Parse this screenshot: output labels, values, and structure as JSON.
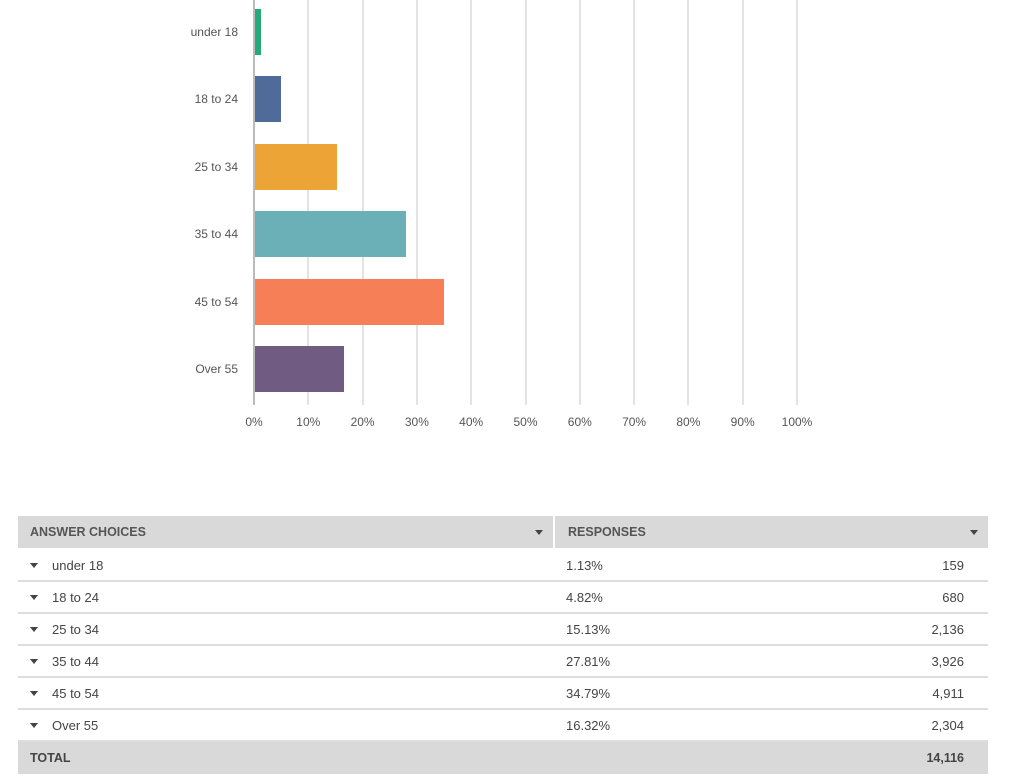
{
  "chart_data": {
    "type": "bar",
    "orientation": "horizontal",
    "categories": [
      "under 18",
      "18 to 24",
      "25 to 34",
      "35 to 44",
      "45 to 54",
      "Over 55"
    ],
    "values": [
      1.13,
      4.82,
      15.13,
      27.81,
      34.79,
      16.32
    ],
    "colors": [
      "#26a97a",
      "#4e6b99",
      "#eba435",
      "#6bb0b6",
      "#f77f58",
      "#705b82"
    ],
    "xlim": [
      0,
      100
    ],
    "xticks": [
      "0%",
      "10%",
      "20%",
      "30%",
      "40%",
      "50%",
      "60%",
      "70%",
      "80%",
      "90%",
      "100%"
    ],
    "grid": true,
    "title": "",
    "xlabel": "",
    "ylabel": ""
  },
  "table": {
    "header": {
      "answer_choices": "ANSWER CHOICES",
      "responses": "RESPONSES"
    },
    "rows": [
      {
        "label": "under 18",
        "percent": "1.13%",
        "count": "159"
      },
      {
        "label": "18 to 24",
        "percent": "4.82%",
        "count": "680"
      },
      {
        "label": "25 to 34",
        "percent": "15.13%",
        "count": "2,136"
      },
      {
        "label": "35 to 44",
        "percent": "27.81%",
        "count": "3,926"
      },
      {
        "label": "45 to 54",
        "percent": "34.79%",
        "count": "4,911"
      },
      {
        "label": "Over 55",
        "percent": "16.32%",
        "count": "2,304"
      }
    ],
    "total": {
      "label": "TOTAL",
      "count": "14,116"
    }
  }
}
